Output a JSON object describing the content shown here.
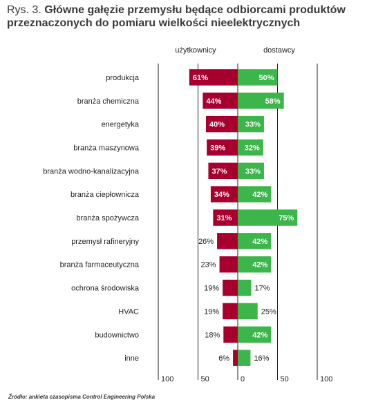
{
  "title": {
    "lead": "Rys. 3.",
    "text": "Główne gałęzie przemysłu będące odbiorcami produktów przeznaczonych do pomiaru wielkości nieelektrycznych"
  },
  "source": "Źródło: ankieta czasopisma Control Engineering Polska",
  "chart_data": {
    "type": "bar",
    "orientation": "horizontal-diverging",
    "categories": [
      "produkcja",
      "branża chemiczna",
      "energetyka",
      "branża maszynowa",
      "branża wodno-kanalizacyjna",
      "branża ciepłownicza",
      "branża spożywcza",
      "przemysł rafineryjny",
      "branża farmaceutyczna",
      "ochrona środowiska",
      "HVAC",
      "budownictwo",
      "inne"
    ],
    "series": [
      {
        "name": "użytkownicy",
        "color": "#a8002e",
        "values": [
          61,
          44,
          40,
          39,
          37,
          34,
          31,
          26,
          23,
          19,
          19,
          18,
          6
        ],
        "labels": [
          "61%",
          "44%",
          "40%",
          "39%",
          "37%",
          "34%",
          "31%",
          "26%",
          "23%",
          "19%",
          "19%",
          "18%",
          "6%"
        ]
      },
      {
        "name": "dostawcy",
        "color": "#3cb54a",
        "values": [
          50,
          58,
          33,
          32,
          33,
          42,
          75,
          42,
          42,
          17,
          25,
          42,
          16
        ],
        "labels": [
          "50%",
          "58%",
          "33%",
          "32%",
          "33%",
          "42%",
          "75%",
          "42%",
          "42%",
          "17%",
          "25%",
          "42%",
          "16%"
        ]
      }
    ],
    "x_ticks": [
      "100",
      "50",
      "0",
      "50",
      "100"
    ],
    "xlim": [
      -100,
      100
    ],
    "grid": true
  }
}
